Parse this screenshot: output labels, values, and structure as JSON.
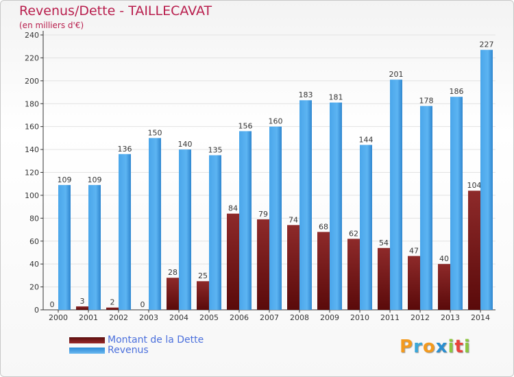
{
  "chart_data": {
    "type": "bar",
    "title": "Revenus/Dette - TAILLECAVAT",
    "subtitle": "(en milliers d'€)",
    "categories": [
      "2000",
      "2001",
      "2002",
      "2003",
      "2004",
      "2005",
      "2006",
      "2007",
      "2008",
      "2009",
      "2010",
      "2011",
      "2012",
      "2013",
      "2014"
    ],
    "series": [
      {
        "name": "Montant de la Dette",
        "color": "#7a1a1a",
        "values": [
          0,
          3,
          2,
          0,
          28,
          25,
          84,
          79,
          74,
          68,
          62,
          54,
          47,
          40,
          104
        ]
      },
      {
        "name": "Revenus",
        "color": "#3d9be3",
        "values": [
          109,
          109,
          136,
          150,
          140,
          135,
          156,
          160,
          183,
          181,
          144,
          201,
          178,
          186,
          227
        ]
      }
    ],
    "ylim": [
      0,
      240
    ],
    "yticks": [
      0,
      20,
      40,
      60,
      80,
      100,
      120,
      140,
      160,
      180,
      200,
      220,
      240
    ],
    "grid": true,
    "legend_position": "bottom-left"
  },
  "logo": {
    "letters": [
      "P",
      "r",
      "o",
      "x",
      "i",
      "t",
      "i"
    ],
    "colors": [
      "#f39a1e",
      "#3aa7d9",
      "#f39a1e",
      "#2a8fd0",
      "#8cc63f",
      "#e8433b",
      "#8cc63f"
    ]
  }
}
